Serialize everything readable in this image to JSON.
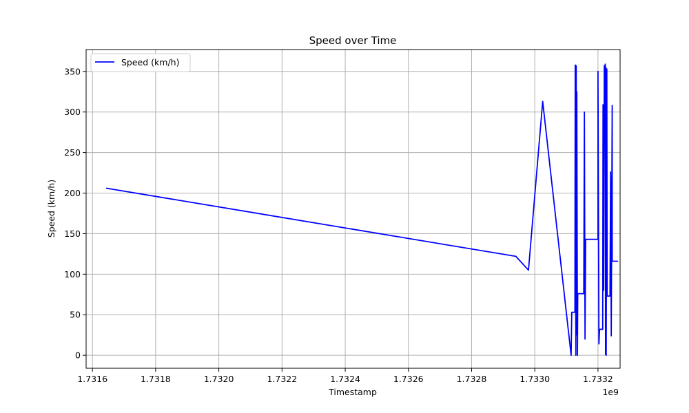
{
  "chart_data": {
    "type": "line",
    "title": "Speed over Time",
    "xlabel": "Timestamp",
    "ylabel": "Speed (km/h)",
    "x_offset_label": "1e9",
    "xlim": [
      1.73158,
      1.73327
    ],
    "ylim": [
      -16,
      377
    ],
    "x_ticks": [
      1.7316,
      1.7318,
      1.732,
      1.7322,
      1.7324,
      1.7326,
      1.7328,
      1.733,
      1.7332
    ],
    "x_tick_labels": [
      "1.7316",
      "1.7318",
      "1.7320",
      "1.7322",
      "1.7324",
      "1.7326",
      "1.7328",
      "1.7330",
      "1.7332"
    ],
    "y_ticks": [
      0,
      50,
      100,
      150,
      200,
      250,
      300,
      350
    ],
    "y_tick_labels": [
      "0",
      "50",
      "100",
      "150",
      "200",
      "250",
      "300",
      "350"
    ],
    "grid": true,
    "legend_position": "top-left",
    "series": [
      {
        "name": "Speed (km/h)",
        "color": "#0000ff",
        "x": [
          1.731645,
          1.73294,
          1.73298,
          1.733025,
          1.733115,
          1.733117,
          1.733127,
          1.733128,
          1.73313,
          1.733131,
          1.733133,
          1.733133,
          1.733135,
          1.733136,
          1.73314,
          1.733143,
          1.733155,
          1.733157,
          1.733159,
          1.733161,
          1.733163,
          1.7332,
          1.7332,
          1.733203,
          1.733205,
          1.733215,
          1.733216,
          1.733218,
          1.73322,
          1.733222,
          1.733223,
          1.733224,
          1.733225,
          1.733226,
          1.733228,
          1.733229,
          1.733231,
          1.733232,
          1.733238,
          1.73324,
          1.733242,
          1.733245,
          1.733245,
          1.733262
        ],
        "y": [
          206,
          122,
          105,
          313,
          0,
          53,
          53,
          358,
          0,
          357,
          25,
          325,
          0,
          76,
          76,
          76,
          76,
          300,
          20,
          143,
          143,
          143,
          350,
          14,
          32,
          32,
          309,
          80,
          357,
          356,
          359,
          1,
          355,
          0,
          353,
          73,
          73,
          73,
          73,
          226,
          24,
          308,
          116,
          116
        ]
      }
    ]
  }
}
